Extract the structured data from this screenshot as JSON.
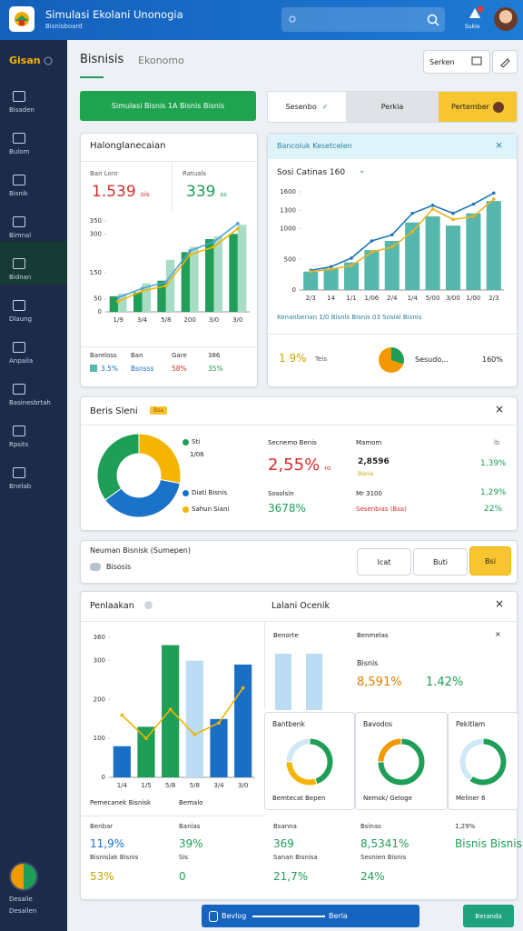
{
  "header": {
    "title": "Simulasi Ekolani Unonogia",
    "subtitle": "Bisnisboard",
    "notify": "Sukio"
  },
  "sidebar": {
    "brand": "Gisan",
    "items": [
      "Bisaden",
      "Bulom",
      "Bisnik",
      "Bimnal",
      "Bidnan",
      "Dlaung",
      "Anpaila",
      "Basinesbrtah",
      "Rpsits",
      "Bnelab"
    ],
    "user": [
      "Desaile",
      "Desailen"
    ]
  },
  "toolbar": {
    "tabs": [
      "Bisnisis",
      "Ekonomo"
    ],
    "search": "Serken"
  },
  "banner": "Simulasi Bisnis 1A Bisnis Bisnis",
  "segments": [
    "Sesenbo",
    "Perkia",
    "Pertember"
  ],
  "card1": {
    "title": "Halonglanecaian",
    "stats": [
      {
        "label": "Ban Lonr",
        "value": "1.539",
        "unit": "ois"
      },
      {
        "label": "Ratuals",
        "value": "339",
        "unit": "ss"
      }
    ],
    "legend": {
      "labels": [
        "Bareloss",
        "Ban",
        "Gare",
        "386"
      ],
      "values": [
        "3.5%",
        "Bsnsss",
        "58%",
        "35%"
      ]
    }
  },
  "card2": {
    "title": "Bancoluk Kesetcelen",
    "subtitle": "Sosi Catinas 160",
    "caption": "Kenanberian 1/0 Bisnis Bisnis 03 Sosial Bisnis",
    "footer": {
      "value": "1 9%",
      "label": "Teis",
      "name": "Sesudo...",
      "total": "160%"
    }
  },
  "card3": {
    "title": "Beris Sleni",
    "badge": "Bsa",
    "legend_note": "1/06",
    "col1": {
      "label": "Secnemo Benis",
      "value": "2,55%",
      "unit": "ro",
      "label2": "Sosolsin",
      "value2": "3678%"
    },
    "col2": {
      "label": "Mamom",
      "value": "2,8596",
      "note": "Bisnis",
      "label2": "Mr 3100",
      "note2": "Sesenbias (Bsa)"
    },
    "col3": {
      "label": "lb",
      "value": "1,39%",
      "value2": "1,29%",
      "value3": "22%"
    }
  },
  "row": {
    "title": "Neuman Bisnisk (Sumepen)",
    "chip": "Bisosis",
    "buttons": [
      "Icat",
      "Buti",
      "Bsi"
    ]
  },
  "card4": {
    "title": "Penlaakan",
    "subtitle": "Lalani Ocenik",
    "chart_caption": [
      "Pemecanek Bisnisk",
      "Bemalo"
    ],
    "panel": {
      "title": "Benorte",
      "label": "Benmelas",
      "sub": "Bisnis",
      "values": [
        "8,591%",
        "1.42%"
      ]
    },
    "gauges": [
      {
        "title": "Bantbenk",
        "caption": "Bemtecat Bepen"
      },
      {
        "title": "Bavodos",
        "caption": "Nemok/ Geloge"
      },
      {
        "title": "Pekitlam",
        "caption": "Meliner 6"
      }
    ],
    "stats": [
      [
        "Benbar",
        "11,9%",
        "Bisnislak Bisnis",
        "53%"
      ],
      [
        "Banlas",
        "39%",
        "Sis",
        "0"
      ],
      [
        "Bsanna",
        "369",
        "Sanan Bisnisa",
        "21,7%"
      ],
      [
        "Bsinas",
        "8,5341%",
        "Sesnien Bisnis",
        "24%"
      ],
      [
        "1,29%",
        "Bisnis Bisnis"
      ]
    ]
  },
  "footer": {
    "left": "Bevlog",
    "center": "Berla",
    "right": "Beranda"
  },
  "chart_data": [
    {
      "type": "bar",
      "categories": [
        "1/9",
        "3/4",
        "5/8",
        "200",
        "3/0",
        "3/0"
      ],
      "series": [
        {
          "kind": "bar",
          "color": "#1e9e57",
          "values": [
            60,
            75,
            120,
            230,
            280,
            300
          ]
        },
        {
          "kind": "bar",
          "color": "#a8dcc4",
          "values": [
            70,
            110,
            200,
            250,
            290,
            335
          ]
        },
        {
          "kind": "line",
          "color": "#f2b400",
          "values": [
            40,
            80,
            100,
            220,
            250,
            320
          ]
        },
        {
          "kind": "line",
          "color": "#4fa3d9",
          "values": [
            55,
            90,
            115,
            235,
            270,
            340
          ]
        }
      ],
      "ylim": [
        0,
        350
      ],
      "yticks": [
        0,
        50,
        150,
        300,
        350
      ]
    },
    {
      "type": "bar",
      "categories": [
        "2/3",
        "14",
        "1/1",
        "1/06",
        "2/4",
        "1/4",
        "5/00",
        "3/00",
        "1/00",
        "2/3"
      ],
      "series": [
        {
          "kind": "bar",
          "color": "#56b8ad",
          "values": [
            300,
            350,
            450,
            650,
            800,
            1100,
            1200,
            1050,
            1250,
            1450
          ]
        },
        {
          "kind": "line",
          "color": "#1f77b4",
          "values": [
            320,
            380,
            520,
            800,
            900,
            1250,
            1380,
            1250,
            1400,
            1580
          ]
        },
        {
          "kind": "line",
          "color": "#e6b422",
          "values": [
            300,
            340,
            400,
            620,
            700,
            950,
            1320,
            1150,
            1200,
            1480
          ]
        }
      ],
      "ylim": [
        0,
        1600
      ],
      "yticks": [
        0,
        500,
        1000,
        1300,
        1600
      ]
    },
    {
      "type": "pie",
      "categories": [
        "Sahun Siani",
        "Diati Bisnis",
        "Sti"
      ],
      "values": [
        28,
        37,
        35
      ],
      "colors": [
        "#f4b400",
        "#1a73c8",
        "#1e9e57"
      ]
    },
    {
      "type": "bar",
      "categories": [
        "1/4",
        "1/5",
        "5/8",
        "5/8",
        "3/4",
        "3/0"
      ],
      "series": [
        {
          "kind": "bar",
          "colors": [
            "#1a6fc4",
            "#1e9e57",
            "#1e9e57",
            "#bcdcf3",
            "#1a6fc4",
            "#1a6fc4"
          ],
          "values": [
            80,
            130,
            340,
            300,
            150,
            290
          ]
        },
        {
          "kind": "line",
          "color": "#f2b400",
          "values": [
            160,
            100,
            175,
            110,
            140,
            230
          ]
        }
      ],
      "ylim": [
        0,
        360
      ],
      "yticks": [
        0,
        100,
        200,
        300,
        360
      ]
    },
    {
      "type": "pie",
      "values": [
        45,
        30,
        25
      ],
      "colors": [
        "#1e9e57",
        "#f4b400",
        "#cfe8f5"
      ]
    },
    {
      "type": "pie",
      "values": [
        75,
        25
      ],
      "colors": [
        "#1e9e57",
        "#f29900"
      ]
    },
    {
      "type": "pie",
      "values": [
        60,
        40
      ],
      "colors": [
        "#1e9e57",
        "#cfe8f5"
      ]
    }
  ]
}
